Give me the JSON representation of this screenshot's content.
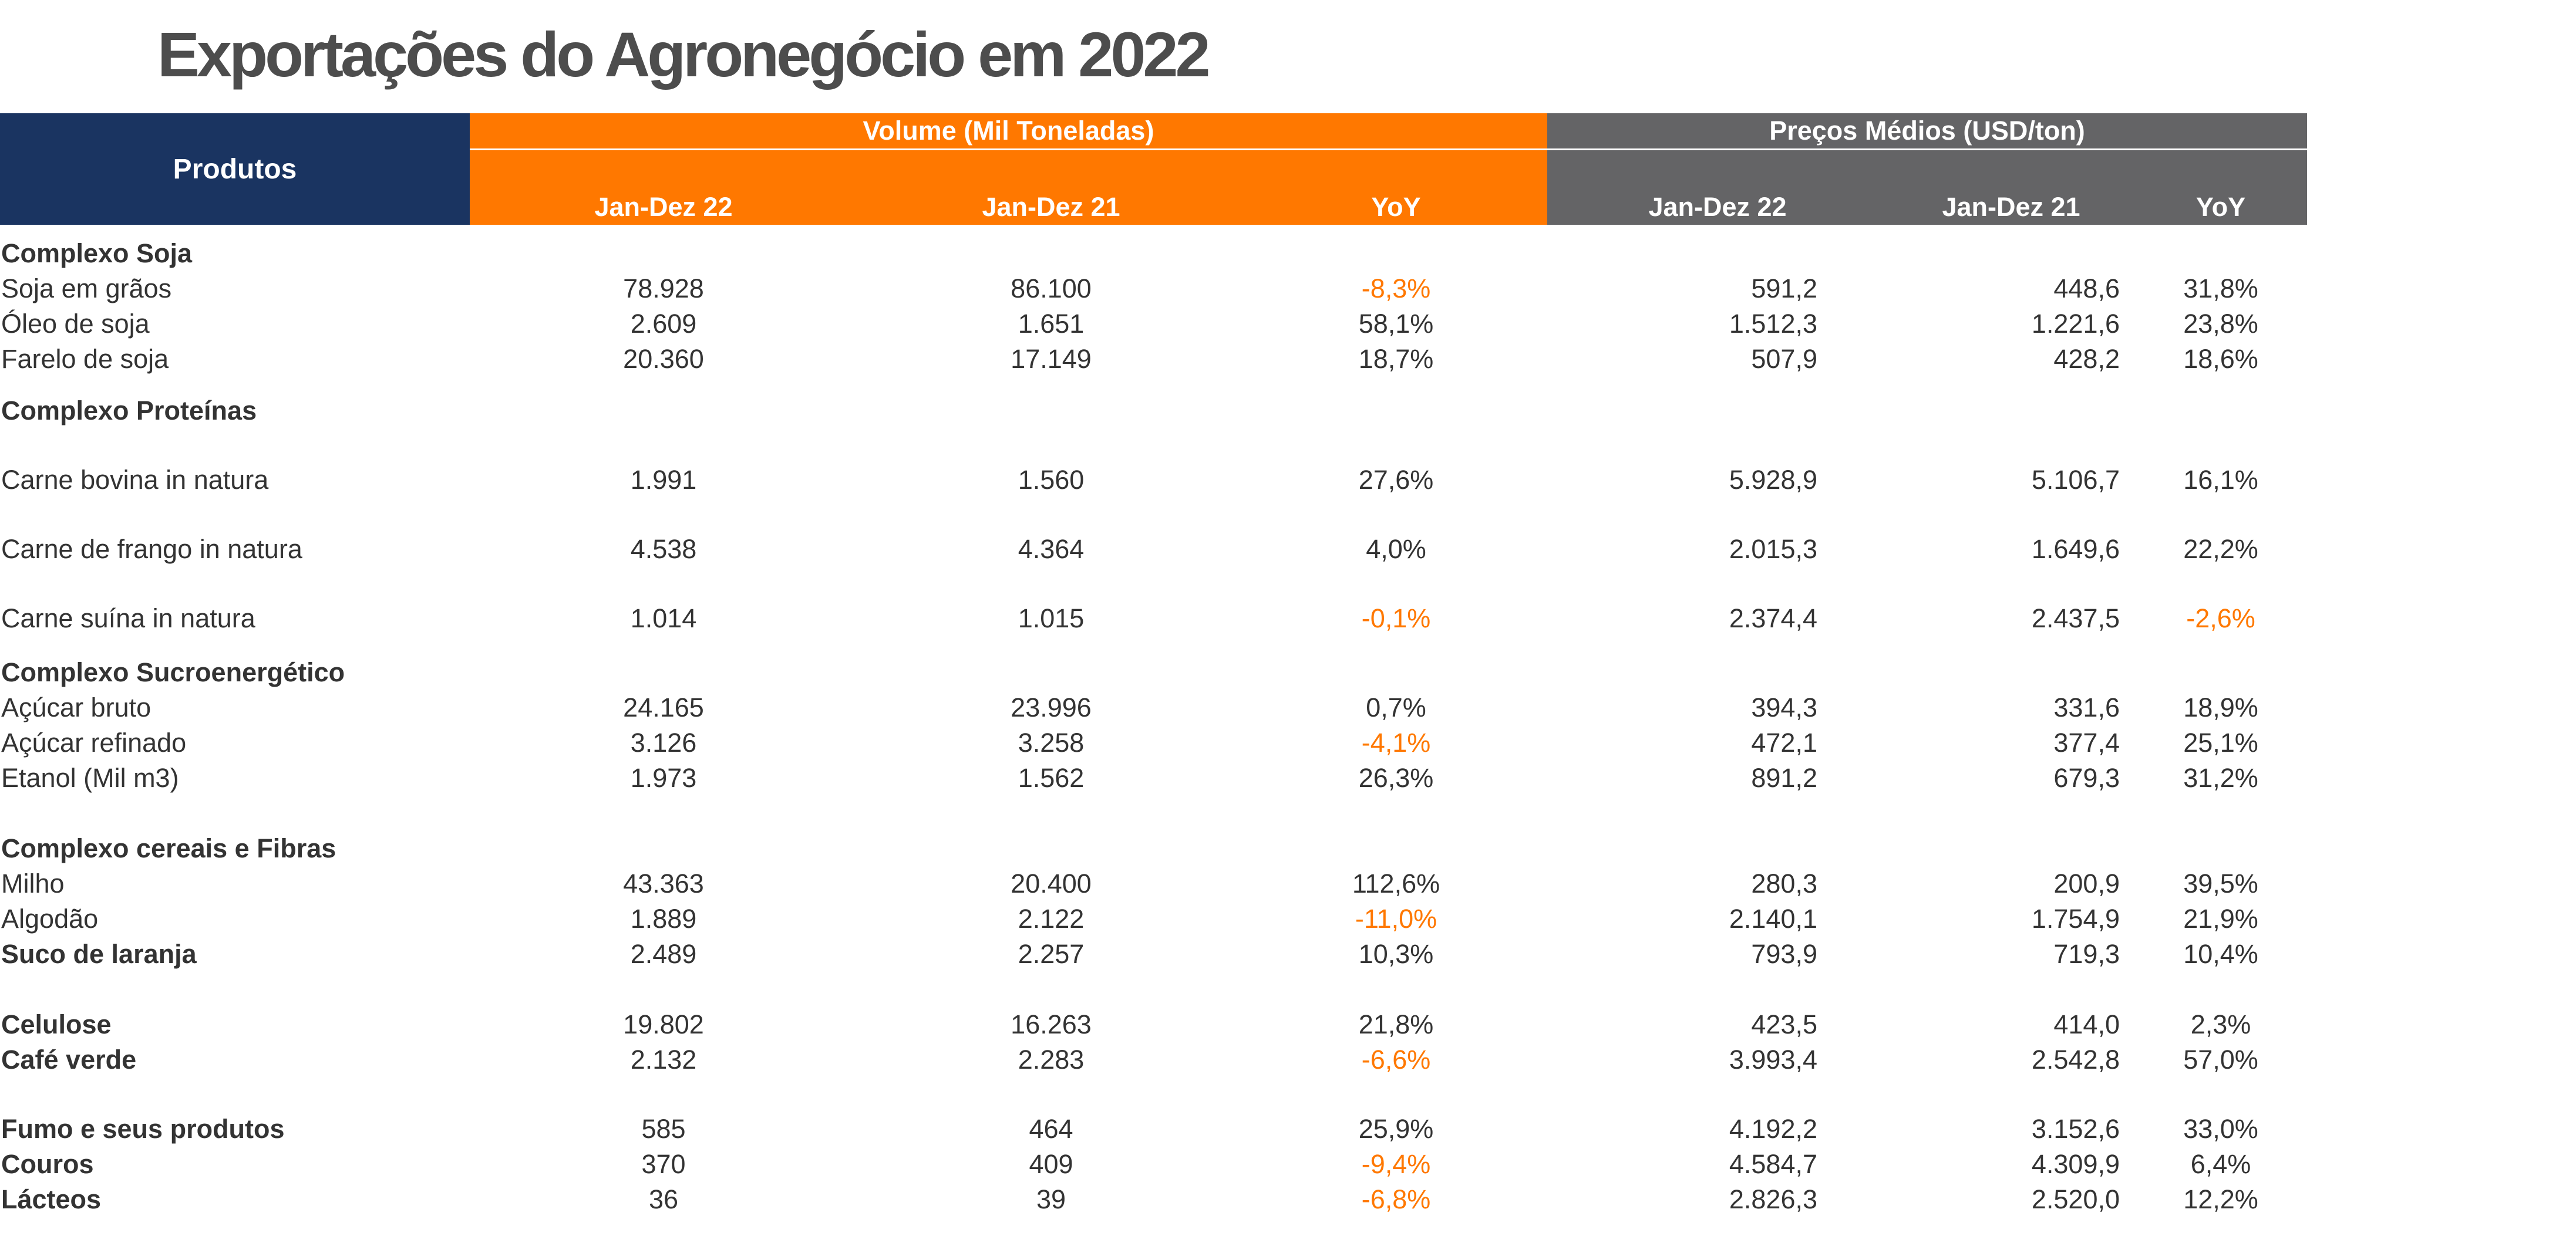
{
  "title": "Exportações do Agronegócio em 2022",
  "colors": {
    "orange": "#ff7800",
    "navy": "#1a3461",
    "gray": "#646466",
    "negative": "#ff7800"
  },
  "header": {
    "products": "Produtos",
    "volume_group": "Volume (Mil Toneladas)",
    "price_group": "Preços Médios (USD/ton)",
    "columns": [
      "Jan-Dez 22",
      "Jan-Dez 21",
      "YoY",
      "Jan-Dez 22",
      "Jan-Dez 21",
      "YoY"
    ]
  },
  "rows": [
    {
      "type": "category",
      "name": "Complexo Soja"
    },
    {
      "type": "item",
      "name": "Soja em grãos",
      "vol22": "78.928",
      "vol21": "86.100",
      "volyoy": "-8,3%",
      "p22": "591,2",
      "p21": "448,6",
      "pyoy": "31,8%"
    },
    {
      "type": "item",
      "name": "Óleo de soja",
      "vol22": "2.609",
      "vol21": "1.651",
      "volyoy": "58,1%",
      "p22": "1.512,3",
      "p21": "1.221,6",
      "pyoy": "23,8%"
    },
    {
      "type": "item",
      "name": "Farelo de soja",
      "vol22": "20.360",
      "vol21": "17.149",
      "volyoy": "18,7%",
      "p22": "507,9",
      "p21": "428,2",
      "pyoy": "18,6%"
    },
    {
      "type": "category",
      "name": "Complexo Proteínas"
    },
    {
      "type": "item",
      "name": "Carne bovina in natura",
      "vol22": "1.991",
      "vol21": "1.560",
      "volyoy": "27,6%",
      "p22": "5.928,9",
      "p21": "5.106,7",
      "pyoy": "16,1%"
    },
    {
      "type": "item",
      "name": "Carne de frango in natura",
      "vol22": "4.538",
      "vol21": "4.364",
      "volyoy": "4,0%",
      "p22": "2.015,3",
      "p21": "1.649,6",
      "pyoy": "22,2%"
    },
    {
      "type": "item",
      "name": "Carne suína in natura",
      "vol22": "1.014",
      "vol21": "1.015",
      "volyoy": "-0,1%",
      "p22": "2.374,4",
      "p21": "2.437,5",
      "pyoy": "-2,6%"
    },
    {
      "type": "category",
      "name": "Complexo Sucroenergético"
    },
    {
      "type": "item",
      "name": "Açúcar bruto",
      "vol22": "24.165",
      "vol21": "23.996",
      "volyoy": "0,7%",
      "p22": "394,3",
      "p21": "331,6",
      "pyoy": "18,9%"
    },
    {
      "type": "item",
      "name": "Açúcar refinado",
      "vol22": "3.126",
      "vol21": "3.258",
      "volyoy": "-4,1%",
      "p22": "472,1",
      "p21": "377,4",
      "pyoy": "25,1%"
    },
    {
      "type": "item",
      "name": "Etanol (Mil m3)",
      "vol22": "1.973",
      "vol21": "1.562",
      "volyoy": "26,3%",
      "p22": "891,2",
      "p21": "679,3",
      "pyoy": "31,2%"
    },
    {
      "type": "category",
      "name": "Complexo cereais e Fibras"
    },
    {
      "type": "item",
      "name": "Milho",
      "vol22": "43.363",
      "vol21": "20.400",
      "volyoy": "112,6%",
      "p22": "280,3",
      "p21": "200,9",
      "pyoy": "39,5%"
    },
    {
      "type": "item",
      "name": "Algodão",
      "vol22": "1.889",
      "vol21": "2.122",
      "volyoy": "-11,0%",
      "p22": "2.140,1",
      "p21": "1.754,9",
      "pyoy": "21,9%"
    },
    {
      "type": "item",
      "bold": true,
      "name": "Suco de laranja",
      "vol22": "2.489",
      "vol21": "2.257",
      "volyoy": "10,3%",
      "p22": "793,9",
      "p21": "719,3",
      "pyoy": "10,4%"
    },
    {
      "type": "item",
      "bold": true,
      "name": "Celulose",
      "vol22": "19.802",
      "vol21": "16.263",
      "volyoy": "21,8%",
      "p22": "423,5",
      "p21": "414,0",
      "pyoy": "2,3%"
    },
    {
      "type": "item",
      "bold": true,
      "name": "Café verde",
      "vol22": "2.132",
      "vol21": "2.283",
      "volyoy": "-6,6%",
      "p22": "3.993,4",
      "p21": "2.542,8",
      "pyoy": "57,0%"
    },
    {
      "type": "item",
      "bold": true,
      "name": "Fumo e seus produtos",
      "vol22": "585",
      "vol21": "464",
      "volyoy": "25,9%",
      "p22": "4.192,2",
      "p21": "3.152,6",
      "pyoy": "33,0%"
    },
    {
      "type": "item",
      "bold": true,
      "name": "Couros",
      "vol22": "370",
      "vol21": "409",
      "volyoy": "-9,4%",
      "p22": "4.584,7",
      "p21": "4.309,9",
      "pyoy": "6,4%"
    },
    {
      "type": "item",
      "bold": true,
      "name": "Lácteos",
      "vol22": "36",
      "vol21": "39",
      "volyoy": "-6,8%",
      "p22": "2.826,3",
      "p21": "2.520,0",
      "pyoy": "12,2%"
    }
  ]
}
